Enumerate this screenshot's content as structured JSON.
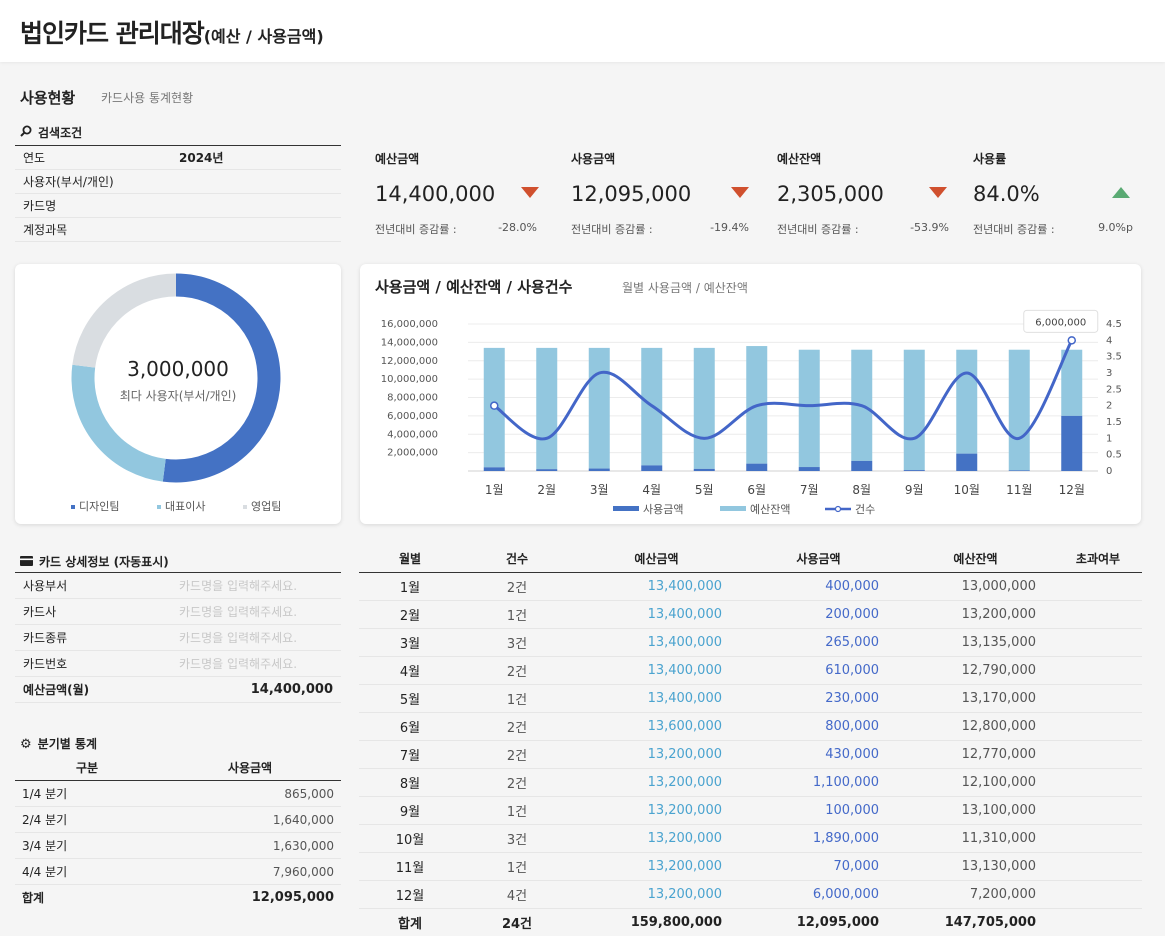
{
  "header": {
    "title": "법인카드 관리대장",
    "subtitle": "(예산 / 사용금액)"
  },
  "section": {
    "title": "사용현황",
    "subtitle": "카드사용 통계현황"
  },
  "search": {
    "title": "검색조건",
    "rows": [
      {
        "label": "연도",
        "value": "2024년"
      },
      {
        "label": "사용자(부서/개인)",
        "value": ""
      },
      {
        "label": "카드명",
        "value": ""
      },
      {
        "label": "계정과목",
        "value": ""
      }
    ]
  },
  "kpis": [
    {
      "label": "예산금액",
      "value": "14,400,000",
      "trend": "down",
      "change_label": "전년대비 증감률 :",
      "change": "-28.0%"
    },
    {
      "label": "사용금액",
      "value": "12,095,000",
      "trend": "down",
      "change_label": "전년대비 증감률 :",
      "change": "-19.4%"
    },
    {
      "label": "예산잔액",
      "value": "2,305,000",
      "trend": "down",
      "change_label": "전년대비 증감률 :",
      "change": "-53.9%"
    },
    {
      "label": "사용률",
      "value": "84.0%",
      "trend": "up",
      "change_label": "전년대비 증감률 :",
      "change": "9.0%p"
    }
  ],
  "colors": {
    "use": "#4472c4",
    "remain": "#92c7df",
    "count": "#4366c8",
    "down": "#d0502e",
    "up": "#5aaa73"
  },
  "donut": {
    "center_value": "3,000,000",
    "center_label": "최다 사용자(부서/개인)",
    "slices": [
      {
        "name": "디자인팀",
        "value": 0.52,
        "color": "#4472c4"
      },
      {
        "name": "대표이사",
        "value": 0.25,
        "color": "#92c7df"
      },
      {
        "name": "영업팀",
        "value": 0.23,
        "color": "#d9dde1"
      }
    ]
  },
  "chart_data": {
    "type": "bar",
    "title": "사용금액 / 예산잔액 / 사용건수",
    "subtitle": "월별 사용금액 / 예산잔액",
    "categories": [
      "1월",
      "2월",
      "3월",
      "4월",
      "5월",
      "6월",
      "7월",
      "8월",
      "9월",
      "10월",
      "11월",
      "12월"
    ],
    "series": [
      {
        "name": "사용금액",
        "type": "bar",
        "values": [
          400000,
          200000,
          265000,
          610000,
          230000,
          800000,
          430000,
          1100000,
          100000,
          1890000,
          70000,
          6000000
        ]
      },
      {
        "name": "예산잔액",
        "type": "bar",
        "values": [
          13000000,
          13200000,
          13135000,
          12790000,
          13170000,
          12800000,
          12770000,
          12100000,
          13100000,
          11310000,
          13130000,
          7200000
        ]
      },
      {
        "name": "건수",
        "type": "line",
        "axis": "right",
        "values": [
          2,
          1,
          3,
          2,
          1,
          2,
          2,
          2,
          1,
          3,
          1,
          4
        ]
      }
    ],
    "y_ticks": [
      "2,000,000",
      "4,000,000",
      "6,000,000",
      "8,000,000",
      "10,000,000",
      "12,000,000",
      "14,000,000",
      "16,000,000"
    ],
    "y_tick_values": [
      2000000,
      4000000,
      6000000,
      8000000,
      10000000,
      12000000,
      14000000,
      16000000
    ],
    "y2_ticks": [
      "0",
      "0.5",
      "1",
      "1.5",
      "2",
      "2.5",
      "3",
      "3.5",
      "4",
      "4.5"
    ],
    "ylim": [
      0,
      16000000
    ],
    "y2lim": [
      0,
      4.5
    ],
    "tooltip": "6,000,000",
    "legend": [
      "사용금액",
      "예산잔액",
      "건수"
    ]
  },
  "detail": {
    "title": "카드 상세정보 (자동표시)",
    "rows": [
      {
        "label": "사용부서",
        "placeholder": "카드명을 입력해주세요."
      },
      {
        "label": "카드사",
        "placeholder": "카드명을 입력해주세요."
      },
      {
        "label": "카드종류",
        "placeholder": "카드명을 입력해주세요."
      },
      {
        "label": "카드번호",
        "placeholder": "카드명을 입력해주세요."
      }
    ],
    "budget_label": "예산금액(월)",
    "budget_value": "14,400,000"
  },
  "quarter": {
    "title": "분기별 통계",
    "headers": [
      "구분",
      "사용금액"
    ],
    "rows": [
      {
        "label": "1/4 분기",
        "value": "865,000"
      },
      {
        "label": "2/4 분기",
        "value": "1,640,000"
      },
      {
        "label": "3/4 분기",
        "value": "1,630,000"
      },
      {
        "label": "4/4 분기",
        "value": "7,960,000"
      }
    ],
    "total_label": "합계",
    "total_value": "12,095,000"
  },
  "monthly": {
    "headers": [
      "월별",
      "건수",
      "예산금액",
      "사용금액",
      "예산잔액",
      "초과여부"
    ],
    "rows": [
      [
        "1월",
        "2건",
        "13,400,000",
        "400,000",
        "13,000,000",
        ""
      ],
      [
        "2월",
        "1건",
        "13,400,000",
        "200,000",
        "13,200,000",
        ""
      ],
      [
        "3월",
        "3건",
        "13,400,000",
        "265,000",
        "13,135,000",
        ""
      ],
      [
        "4월",
        "2건",
        "13,400,000",
        "610,000",
        "12,790,000",
        ""
      ],
      [
        "5월",
        "1건",
        "13,400,000",
        "230,000",
        "13,170,000",
        ""
      ],
      [
        "6월",
        "2건",
        "13,600,000",
        "800,000",
        "12,800,000",
        ""
      ],
      [
        "7월",
        "2건",
        "13,200,000",
        "430,000",
        "12,770,000",
        ""
      ],
      [
        "8월",
        "2건",
        "13,200,000",
        "1,100,000",
        "12,100,000",
        ""
      ],
      [
        "9월",
        "1건",
        "13,200,000",
        "100,000",
        "13,100,000",
        ""
      ],
      [
        "10월",
        "3건",
        "13,200,000",
        "1,890,000",
        "11,310,000",
        ""
      ],
      [
        "11월",
        "1건",
        "13,200,000",
        "70,000",
        "13,130,000",
        ""
      ],
      [
        "12월",
        "4건",
        "13,200,000",
        "6,000,000",
        "7,200,000",
        ""
      ]
    ],
    "total": [
      "합계",
      "24건",
      "159,800,000",
      "12,095,000",
      "147,705,000",
      ""
    ]
  }
}
